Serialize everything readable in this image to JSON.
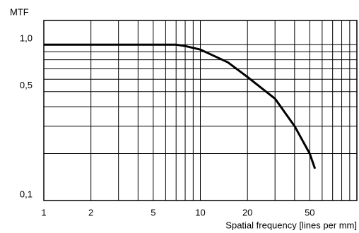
{
  "chart_data": {
    "type": "line",
    "ylabel": "MTF",
    "xlabel": "Spatial frequency [lines per mm]",
    "xlog": true,
    "ylog": true,
    "grid": true,
    "xlim": [
      1,
      100
    ],
    "ylim": [
      0.1,
      1.43
    ],
    "xticks": [
      1,
      2,
      5,
      10,
      20,
      50
    ],
    "minor_xticks": [
      3,
      4,
      6,
      7,
      8,
      9,
      30,
      40,
      60,
      70,
      80,
      90
    ],
    "yticks": [
      {
        "value": 0.1,
        "label": "0,1"
      },
      {
        "value": 0.5,
        "label": "0,5"
      },
      {
        "value": 1,
        "label": "1,0"
      }
    ],
    "minor_yticks": [
      0.2,
      0.3,
      0.4,
      0.6,
      0.7,
      0.8,
      0.9
    ],
    "x": [
      1,
      5,
      7,
      8,
      10,
      15,
      20,
      30,
      40,
      50,
      54
    ],
    "series": [
      {
        "color": "#000000",
        "values": [
          1,
          1,
          1,
          0.98,
          0.93,
          0.77,
          0.62,
          0.45,
          0.3,
          0.2,
          0.16
        ]
      }
    ]
  }
}
